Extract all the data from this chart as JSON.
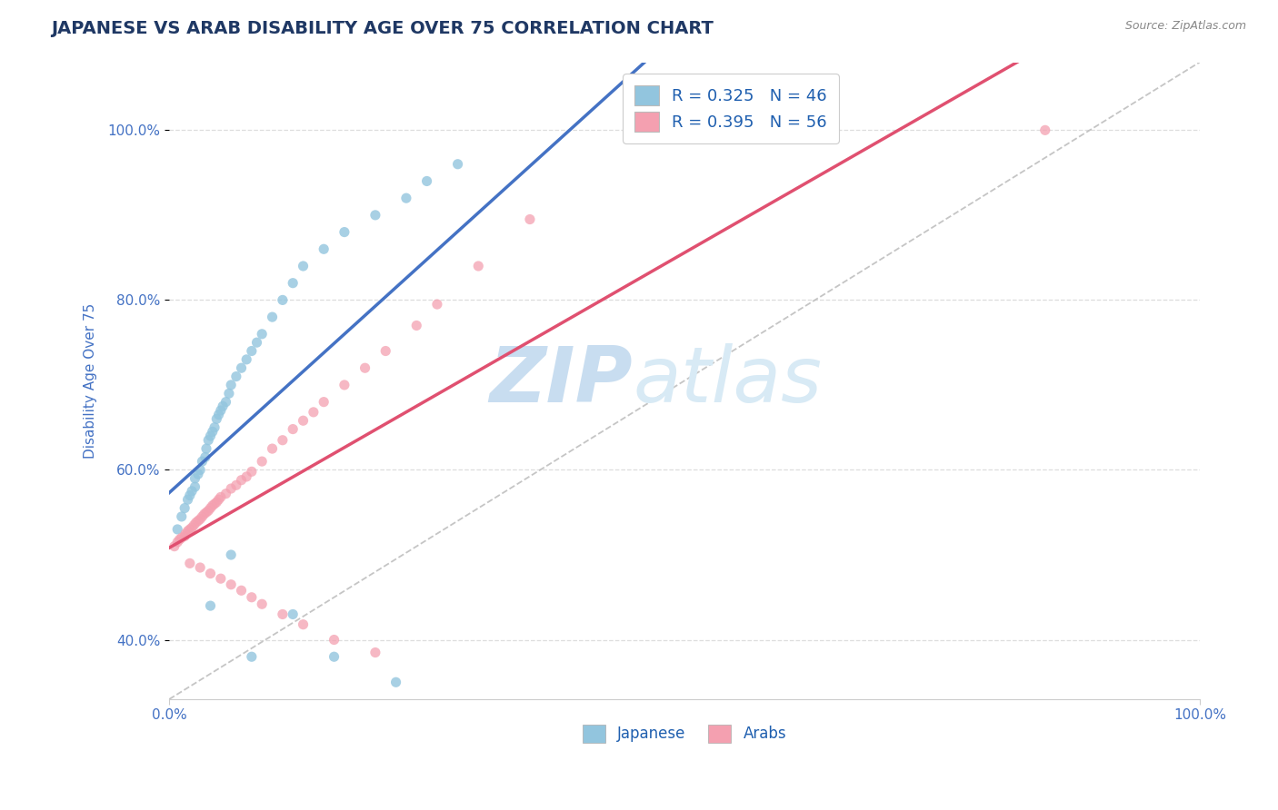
{
  "title": "JAPANESE VS ARAB DISABILITY AGE OVER 75 CORRELATION CHART",
  "source_text": "Source: ZipAtlas.com",
  "ylabel": "Disability Age Over 75",
  "xlim": [
    0,
    1.0
  ],
  "ylim": [
    0.33,
    1.08
  ],
  "xtick_positions": [
    0.0,
    1.0
  ],
  "xtick_labels": [
    "0.0%",
    "100.0%"
  ],
  "ytick_vals": [
    0.4,
    0.6,
    0.8,
    1.0
  ],
  "ytick_labels": [
    "40.0%",
    "60.0%",
    "80.0%",
    "100.0%"
  ],
  "r_japanese": 0.325,
  "n_japanese": 46,
  "r_arabs": 0.395,
  "n_arabs": 56,
  "color_japanese": "#92C5DE",
  "color_arabs": "#F4A0B0",
  "color_trendline_japanese": "#4472C4",
  "color_trendline_arabs": "#E05070",
  "color_diagonal": "#BBBBBB",
  "background_color": "#FFFFFF",
  "grid_color": "#DDDDDD",
  "title_color": "#1F3864",
  "legend_text_color": "#1F5FAF",
  "axis_label_color": "#4472C4",
  "japanese_x": [
    0.008,
    0.012,
    0.015,
    0.018,
    0.02,
    0.022,
    0.025,
    0.025,
    0.028,
    0.03,
    0.032,
    0.035,
    0.036,
    0.038,
    0.04,
    0.042,
    0.044,
    0.046,
    0.048,
    0.05,
    0.052,
    0.055,
    0.058,
    0.06,
    0.065,
    0.07,
    0.075,
    0.08,
    0.085,
    0.09,
    0.1,
    0.11,
    0.12,
    0.13,
    0.15,
    0.17,
    0.2,
    0.23,
    0.25,
    0.28,
    0.04,
    0.06,
    0.08,
    0.12,
    0.16,
    0.22
  ],
  "japanese_y": [
    0.53,
    0.545,
    0.555,
    0.565,
    0.57,
    0.575,
    0.58,
    0.59,
    0.595,
    0.6,
    0.61,
    0.615,
    0.625,
    0.635,
    0.64,
    0.645,
    0.65,
    0.66,
    0.665,
    0.67,
    0.675,
    0.68,
    0.69,
    0.7,
    0.71,
    0.72,
    0.73,
    0.74,
    0.75,
    0.76,
    0.78,
    0.8,
    0.82,
    0.84,
    0.86,
    0.88,
    0.9,
    0.92,
    0.94,
    0.96,
    0.44,
    0.5,
    0.38,
    0.43,
    0.38,
    0.35
  ],
  "arabs_x": [
    0.005,
    0.008,
    0.01,
    0.012,
    0.015,
    0.016,
    0.018,
    0.02,
    0.022,
    0.024,
    0.026,
    0.028,
    0.03,
    0.032,
    0.034,
    0.036,
    0.038,
    0.04,
    0.042,
    0.044,
    0.046,
    0.048,
    0.05,
    0.055,
    0.06,
    0.065,
    0.07,
    0.075,
    0.08,
    0.09,
    0.1,
    0.11,
    0.12,
    0.13,
    0.14,
    0.15,
    0.17,
    0.19,
    0.21,
    0.24,
    0.26,
    0.3,
    0.35,
    0.02,
    0.03,
    0.04,
    0.05,
    0.06,
    0.07,
    0.08,
    0.09,
    0.11,
    0.13,
    0.16,
    0.2,
    0.85
  ],
  "arabs_y": [
    0.51,
    0.515,
    0.518,
    0.52,
    0.522,
    0.525,
    0.528,
    0.53,
    0.532,
    0.535,
    0.538,
    0.54,
    0.542,
    0.545,
    0.548,
    0.55,
    0.552,
    0.555,
    0.558,
    0.56,
    0.562,
    0.565,
    0.568,
    0.572,
    0.578,
    0.582,
    0.588,
    0.592,
    0.598,
    0.61,
    0.625,
    0.635,
    0.648,
    0.658,
    0.668,
    0.68,
    0.7,
    0.72,
    0.74,
    0.77,
    0.795,
    0.84,
    0.895,
    0.49,
    0.485,
    0.478,
    0.472,
    0.465,
    0.458,
    0.45,
    0.442,
    0.43,
    0.418,
    0.4,
    0.385,
    1.0
  ],
  "watermark_zip": "ZIP",
  "watermark_atlas": "atlas",
  "watermark_color": "#C8DDF0",
  "figsize": [
    14.06,
    8.92
  ],
  "dpi": 100
}
